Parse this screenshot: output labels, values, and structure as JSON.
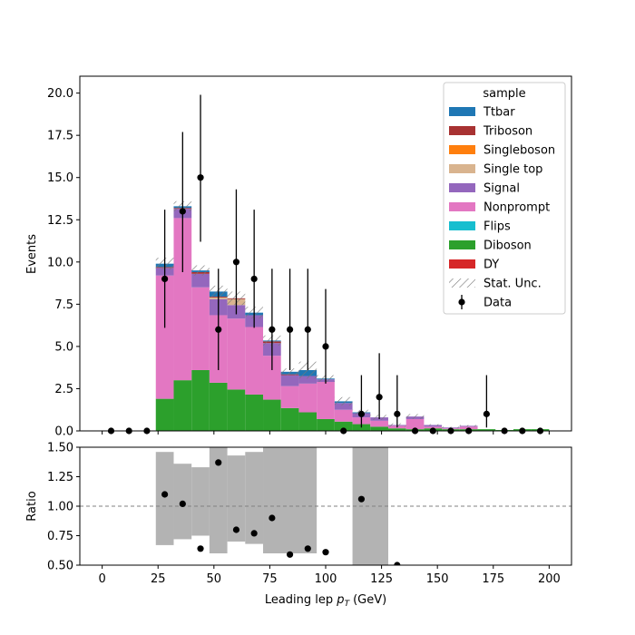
{
  "chart_data": {
    "type": "bar",
    "stacked": true,
    "bin_width": 8,
    "bin_edges": [
      0,
      8,
      16,
      24,
      32,
      40,
      48,
      56,
      64,
      72,
      80,
      88,
      96,
      104,
      112,
      120,
      128,
      136,
      144,
      152,
      160,
      168,
      176,
      184,
      192,
      200
    ],
    "xlabel": "Leading lep",
    "xlabel_sub": "T",
    "xlabel_unit": "(GeV)",
    "xlim": [
      -10,
      210
    ],
    "xticks": [
      0,
      25,
      50,
      75,
      100,
      125,
      150,
      175,
      200
    ],
    "main": {
      "ylabel": "Events",
      "ylim": [
        0,
        21
      ],
      "yticks": [
        "0.0",
        "2.5",
        "5.0",
        "7.5",
        "10.0",
        "12.5",
        "15.0",
        "17.5",
        "20.0"
      ],
      "series": [
        {
          "name": "DY",
          "color": "#d62728",
          "values": [
            0,
            0,
            0,
            0,
            0,
            0,
            0,
            0,
            0,
            0,
            0,
            0,
            0,
            0,
            0,
            0,
            0,
            0,
            0,
            0,
            0,
            0,
            0,
            0,
            0
          ]
        },
        {
          "name": "Diboson",
          "color": "#2ca02c",
          "values": [
            0,
            0,
            0,
            1.9,
            3.0,
            3.6,
            2.85,
            2.45,
            2.15,
            1.85,
            1.35,
            1.1,
            0.7,
            0.55,
            0.4,
            0.25,
            0.15,
            0.1,
            0.15,
            0.1,
            0.1,
            0.1,
            0.05,
            0.1,
            0.1
          ]
        },
        {
          "name": "Flips",
          "color": "#17becf",
          "values": [
            0,
            0,
            0,
            0,
            0,
            0,
            0,
            0,
            0,
            0,
            0,
            0,
            0,
            0,
            0,
            0,
            0,
            0,
            0,
            0,
            0,
            0,
            0,
            0,
            0
          ]
        },
        {
          "name": "Nonprompt",
          "color": "#e377c2",
          "values": [
            0,
            0,
            0,
            7.3,
            9.6,
            4.9,
            4.0,
            4.2,
            4.0,
            2.6,
            1.3,
            1.7,
            2.2,
            0.7,
            0.4,
            0.35,
            0.15,
            0.6,
            0.1,
            0.05,
            0.15,
            0,
            0,
            0,
            0
          ]
        },
        {
          "name": "Signal",
          "color": "#9467bd",
          "values": [
            0,
            0,
            0,
            0.45,
            0.55,
            0.8,
            0.95,
            0.8,
            0.7,
            0.75,
            0.65,
            0.45,
            0.15,
            0.4,
            0.25,
            0.2,
            0.05,
            0.15,
            0.1,
            0.05,
            0.05,
            0,
            0,
            0,
            0
          ]
        },
        {
          "name": "Single top",
          "color": "#d9b48f",
          "values": [
            0,
            0,
            0,
            0,
            0,
            0,
            0.1,
            0.35,
            0,
            0,
            0,
            0,
            0,
            0,
            0,
            0,
            0,
            0,
            0,
            0,
            0,
            0,
            0,
            0,
            0
          ]
        },
        {
          "name": "Singleboson",
          "color": "#ff7f0e",
          "values": [
            0,
            0,
            0,
            0,
            0,
            0,
            0,
            0,
            0,
            0,
            0,
            0,
            0,
            0,
            0,
            0,
            0,
            0,
            0,
            0,
            0,
            0,
            0,
            0,
            0
          ]
        },
        {
          "name": "Triboson",
          "color": "#a83232",
          "values": [
            0,
            0,
            0,
            0.05,
            0.05,
            0.1,
            0.05,
            0.05,
            0,
            0.1,
            0.05,
            0,
            0,
            0,
            0,
            0,
            0,
            0,
            0,
            0,
            0,
            0,
            0,
            0,
            0
          ]
        },
        {
          "name": "Ttbar",
          "color": "#1f77b4",
          "values": [
            0,
            0,
            0,
            0.2,
            0.1,
            0.1,
            0.3,
            0,
            0.15,
            0.05,
            0.15,
            0.35,
            0.05,
            0.1,
            0.05,
            0,
            0,
            0,
            0,
            0,
            0,
            0,
            0,
            0,
            0
          ]
        }
      ],
      "stat_unc": [
        0,
        0,
        0,
        0.35,
        0.3,
        0.3,
        0.35,
        0.4,
        0.35,
        0.3,
        0.2,
        0.5,
        0.2,
        0.25,
        0.15,
        0.15,
        0.1,
        0.15,
        0.05,
        0.05,
        0.05,
        0,
        0,
        0,
        0
      ],
      "data": {
        "name": "Data",
        "values": [
          0,
          0,
          0,
          9,
          13,
          15,
          6,
          10,
          9,
          6,
          6,
          6,
          5,
          0,
          1,
          2,
          1,
          0,
          0,
          0,
          0,
          1,
          0,
          0,
          0
        ],
        "err_up": [
          0,
          0,
          0,
          4.1,
          4.7,
          4.9,
          3.6,
          4.3,
          4.1,
          3.6,
          3.6,
          3.6,
          3.4,
          0,
          2.3,
          2.6,
          2.3,
          0,
          0,
          0,
          0,
          2.3,
          0,
          0,
          0
        ],
        "err_down": [
          0,
          0,
          0,
          2.9,
          3.6,
          3.8,
          2.4,
          3.1,
          2.9,
          2.4,
          2.4,
          2.4,
          2.2,
          0,
          0.8,
          1.3,
          0.8,
          0,
          0,
          0,
          0,
          0.8,
          0,
          0,
          0
        ]
      },
      "legend": {
        "title": "sample",
        "placement": "top-right",
        "entries": [
          "Ttbar",
          "Triboson",
          "Singleboson",
          "Single top",
          "Signal",
          "Nonprompt",
          "Flips",
          "Diboson",
          "DY",
          "Stat. Unc.",
          "Data"
        ]
      }
    },
    "ratio": {
      "ylabel": "Ratio",
      "ylim": [
        0.5,
        1.5
      ],
      "yticks": [
        "0.50",
        "0.75",
        "1.00",
        "1.25",
        "1.50"
      ],
      "reference_line": 1.0,
      "unc_bands": [
        {
          "x0": 24,
          "x1": 32,
          "lo": 0.67,
          "hi": 1.46
        },
        {
          "x0": 32,
          "x1": 40,
          "lo": 0.72,
          "hi": 1.36
        },
        {
          "x0": 40,
          "x1": 48,
          "lo": 0.75,
          "hi": 1.33
        },
        {
          "x0": 48,
          "x1": 56,
          "lo": 0.6,
          "hi": 1.5
        },
        {
          "x0": 56,
          "x1": 64,
          "lo": 0.7,
          "hi": 1.43
        },
        {
          "x0": 64,
          "x1": 72,
          "lo": 0.68,
          "hi": 1.46
        },
        {
          "x0": 72,
          "x1": 96,
          "lo": 0.6,
          "hi": 1.5
        },
        {
          "x0": 112,
          "x1": 128,
          "lo": 0.5,
          "hi": 1.5
        }
      ],
      "points": [
        {
          "x": 28,
          "y": 1.1
        },
        {
          "x": 36,
          "y": 1.02
        },
        {
          "x": 44,
          "y": 0.64
        },
        {
          "x": 52,
          "y": 1.37
        },
        {
          "x": 60,
          "y": 0.8
        },
        {
          "x": 68,
          "y": 0.77
        },
        {
          "x": 76,
          "y": 0.9
        },
        {
          "x": 84,
          "y": 0.59
        },
        {
          "x": 92,
          "y": 0.64
        },
        {
          "x": 100,
          "y": 0.61
        },
        {
          "x": 116,
          "y": 1.06
        },
        {
          "x": 132,
          "y": 0.5
        }
      ]
    }
  }
}
